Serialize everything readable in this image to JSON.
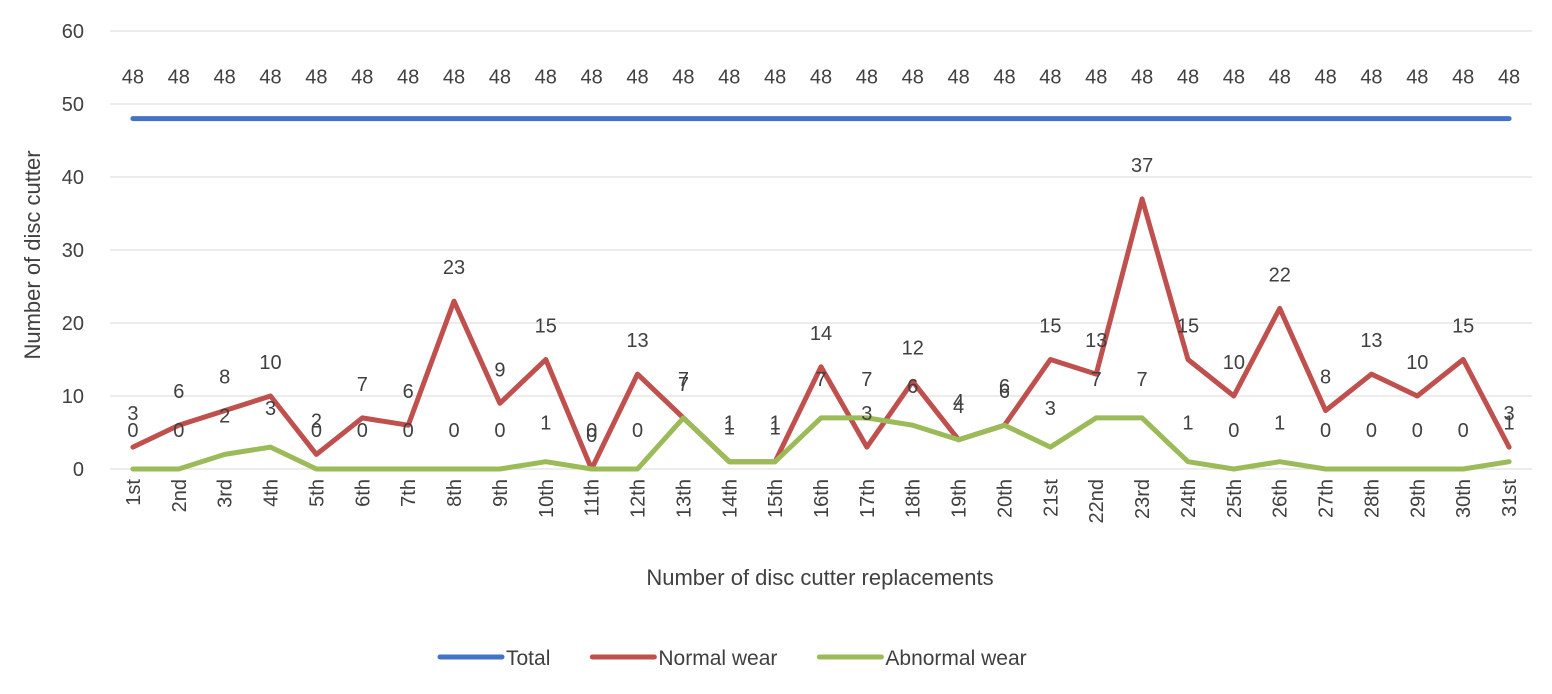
{
  "chart_data": {
    "type": "line",
    "title": "",
    "xlabel": "Number  of disc cutter replacements",
    "ylabel": "Number  of disc cutter",
    "ylim": [
      0,
      60
    ],
    "yticks": [
      0,
      10,
      20,
      30,
      40,
      50,
      60
    ],
    "grid": true,
    "legend_position": "bottom",
    "categories": [
      "1st",
      "2nd",
      "3rd",
      "4th",
      "5th",
      "6th",
      "7th",
      "8th",
      "9th",
      "10th",
      "11th",
      "12th",
      "13th",
      "14th",
      "15th",
      "16th",
      "17th",
      "18th",
      "19th",
      "20th",
      "21st",
      "22nd",
      "23rd",
      "24th",
      "25th",
      "26th",
      "27th",
      "28th",
      "29th",
      "30th",
      "31st"
    ],
    "series": [
      {
        "name": "Total",
        "color": "#4472c4",
        "values": [
          48,
          48,
          48,
          48,
          48,
          48,
          48,
          48,
          48,
          48,
          48,
          48,
          48,
          48,
          48,
          48,
          48,
          48,
          48,
          48,
          48,
          48,
          48,
          48,
          48,
          48,
          48,
          48,
          48,
          48,
          48
        ]
      },
      {
        "name": "Normal wear",
        "color": "#c0504d",
        "values": [
          3,
          6,
          8,
          10,
          2,
          7,
          6,
          23,
          9,
          15,
          0,
          13,
          7,
          1,
          1,
          14,
          3,
          12,
          4,
          6,
          15,
          13,
          37,
          15,
          10,
          22,
          8,
          13,
          10,
          15,
          3
        ]
      },
      {
        "name": "Abnormal wear",
        "color": "#9bbb59",
        "values": [
          0,
          0,
          2,
          3,
          0,
          0,
          0,
          0,
          0,
          1,
          0,
          0,
          7,
          1,
          1,
          7,
          7,
          6,
          4,
          6,
          3,
          7,
          7,
          1,
          0,
          1,
          0,
          0,
          0,
          0,
          1
        ]
      }
    ]
  }
}
